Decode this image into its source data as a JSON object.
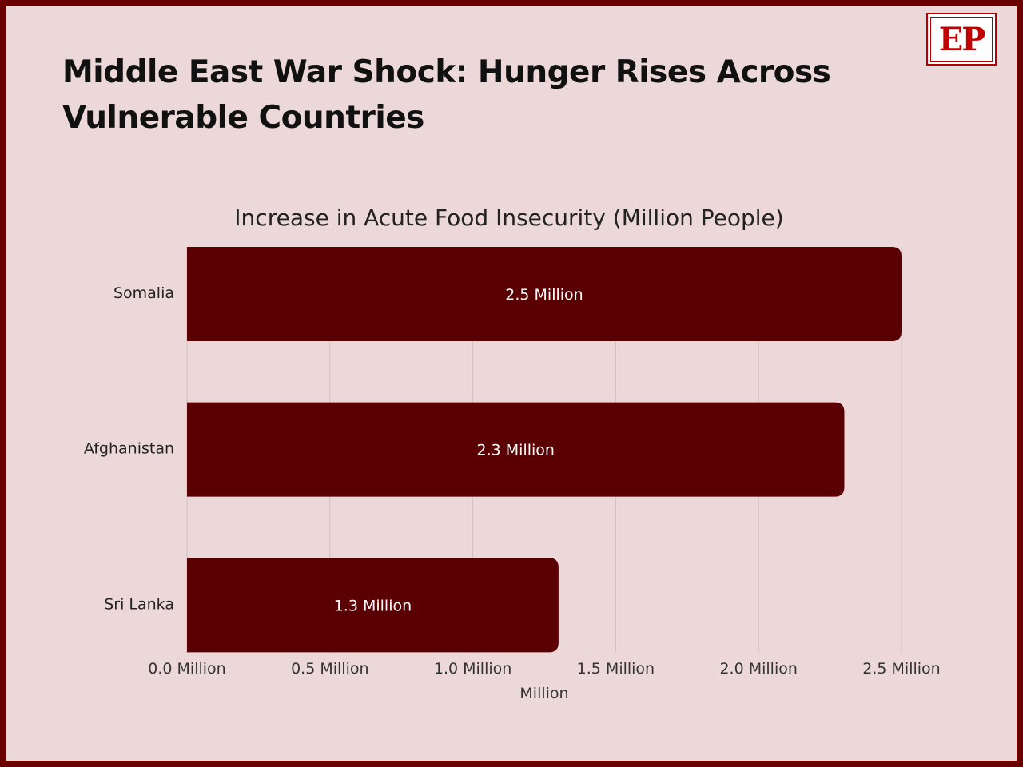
{
  "headline": "Middle East War Shock: Hunger Rises Across Vulnerable Countries",
  "logo": {
    "text": "EP",
    "color": "#c30000"
  },
  "colors": {
    "bar": "#5a0003",
    "grid": "#d2bfc0",
    "background": "#ecd8d9",
    "border": "#6b0000"
  },
  "chart_data": {
    "type": "bar",
    "orientation": "horizontal",
    "title": "Increase in Acute Food Insecurity (Million People)",
    "categories": [
      "Somalia",
      "Afghanistan",
      "Sri Lanka"
    ],
    "values": [
      2.5,
      2.3,
      1.3
    ],
    "value_labels": [
      "2.5 Million",
      "2.3 Million",
      "1.3 Million"
    ],
    "xlabel": "Million",
    "ylabel": "",
    "xlim": [
      0,
      2.5
    ],
    "x_ticks": [
      0,
      0.5,
      1.0,
      1.5,
      2.0,
      2.5
    ],
    "x_tick_labels": [
      "0.0 Million",
      "0.5 Million",
      "1.0 Million",
      "1.5 Million",
      "2.0 Million",
      "2.5 Million"
    ],
    "grid": true,
    "legend": "none"
  }
}
